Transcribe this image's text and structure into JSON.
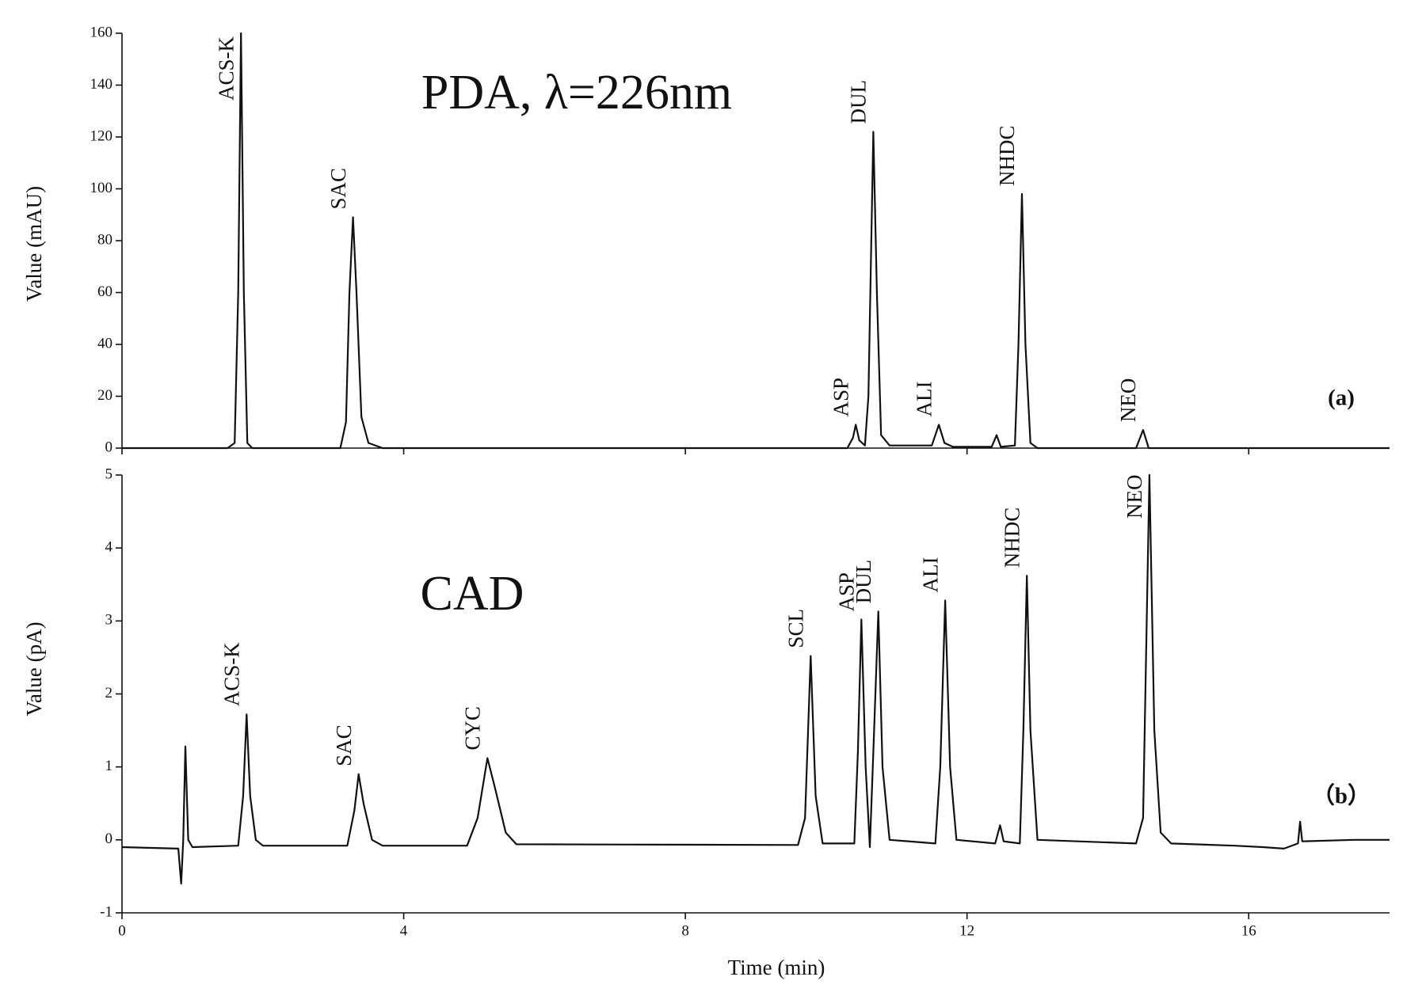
{
  "chart_data": [
    {
      "type": "line",
      "title": "PDA, λ=226nm",
      "panel_label": "(a)",
      "ylabel": "Value (mAU)",
      "xlim": [
        0,
        18
      ],
      "xticks": [
        0,
        4,
        8,
        12,
        16
      ],
      "ylim": [
        0,
        160
      ],
      "yticks": [
        0,
        20,
        40,
        60,
        80,
        100,
        120,
        140,
        160
      ],
      "color": "#111111",
      "x": [
        0,
        0.8,
        1.5,
        1.6,
        1.65,
        1.69,
        1.73,
        1.78,
        1.85,
        3.1,
        3.18,
        3.23,
        3.28,
        3.33,
        3.4,
        3.5,
        3.7,
        10.3,
        10.38,
        10.42,
        10.47,
        10.55,
        10.6,
        10.67,
        10.72,
        10.78,
        10.9,
        11.5,
        11.6,
        11.68,
        11.8,
        12.35,
        12.42,
        12.48,
        12.68,
        12.73,
        12.78,
        12.83,
        12.9,
        13.0,
        14.4,
        14.5,
        14.58,
        18
      ],
      "values": [
        0,
        0,
        0,
        2,
        60,
        160,
        60,
        2,
        0,
        0,
        10,
        60,
        89,
        60,
        12,
        2,
        0,
        0,
        4,
        9,
        3,
        1,
        20,
        122,
        60,
        5,
        1,
        1,
        9,
        2,
        0.5,
        0.5,
        5,
        0.5,
        1,
        40,
        98,
        40,
        2,
        0,
        0,
        7,
        0,
        0
      ],
      "annotations": [
        {
          "text": "ACS-K",
          "x": 1.69
        },
        {
          "text": "SAC",
          "x": 3.28
        },
        {
          "text": "ASP",
          "x": 10.42
        },
        {
          "text": "DUL",
          "x": 10.67
        },
        {
          "text": "ALI",
          "x": 11.6
        },
        {
          "text": "NHDC",
          "x": 12.78
        },
        {
          "text": "NEO",
          "x": 14.5
        }
      ]
    },
    {
      "type": "line",
      "title": "CAD",
      "panel_label": "（b）",
      "ylabel": "Value (pA)",
      "xlabel": "Time (min)",
      "xlim": [
        0,
        18
      ],
      "xticks": [
        0,
        4,
        8,
        12,
        16
      ],
      "ylim": [
        -1,
        5
      ],
      "yticks": [
        -1,
        0,
        1,
        2,
        3,
        4,
        5
      ],
      "color": "#111111",
      "x": [
        0,
        0.8,
        0.84,
        0.87,
        0.9,
        0.94,
        1.0,
        1.65,
        1.72,
        1.77,
        1.82,
        1.9,
        2.0,
        3.2,
        3.3,
        3.36,
        3.43,
        3.55,
        3.7,
        4.9,
        5.05,
        5.19,
        5.3,
        5.45,
        5.6,
        9.6,
        9.7,
        9.78,
        9.85,
        9.95,
        10.4,
        10.45,
        10.5,
        10.56,
        10.62,
        10.67,
        10.74,
        10.8,
        10.9,
        11.55,
        11.62,
        11.69,
        11.76,
        11.85,
        12.4,
        12.47,
        12.52,
        12.75,
        12.8,
        12.85,
        12.9,
        13.0,
        14.4,
        14.5,
        14.59,
        14.66,
        14.75,
        14.9,
        15.8,
        16.2,
        16.5,
        16.7,
        16.73,
        16.76,
        17.5,
        18
      ],
      "values": [
        -0.1,
        -0.12,
        -0.6,
        0,
        1.28,
        0,
        -0.1,
        -0.08,
        0.6,
        1.72,
        0.6,
        0,
        -0.08,
        -0.08,
        0.4,
        0.9,
        0.5,
        0,
        -0.08,
        -0.08,
        0.3,
        1.12,
        0.7,
        0.1,
        -0.06,
        -0.07,
        0.3,
        2.52,
        0.6,
        -0.05,
        -0.05,
        1.2,
        3.02,
        1.0,
        -0.1,
        1.2,
        3.13,
        1.0,
        0,
        -0.05,
        1.0,
        3.28,
        1.0,
        0,
        -0.05,
        0.2,
        -0.02,
        -0.05,
        1.5,
        3.62,
        1.5,
        0,
        -0.05,
        0.3,
        5.0,
        1.5,
        0.1,
        -0.05,
        -0.08,
        -0.1,
        -0.12,
        -0.05,
        0.25,
        -0.02,
        0.0,
        0.0
      ],
      "annotations": [
        {
          "text": "ACS-K",
          "x": 1.77
        },
        {
          "text": "SAC",
          "x": 3.36
        },
        {
          "text": "CYC",
          "x": 5.19
        },
        {
          "text": "SCL",
          "x": 9.78
        },
        {
          "text": "ASP",
          "x": 10.5
        },
        {
          "text": "DUL",
          "x": 10.74
        },
        {
          "text": "ALI",
          "x": 11.69
        },
        {
          "text": "NHDC",
          "x": 12.85
        },
        {
          "text": "NEO",
          "x": 14.59
        }
      ]
    }
  ]
}
